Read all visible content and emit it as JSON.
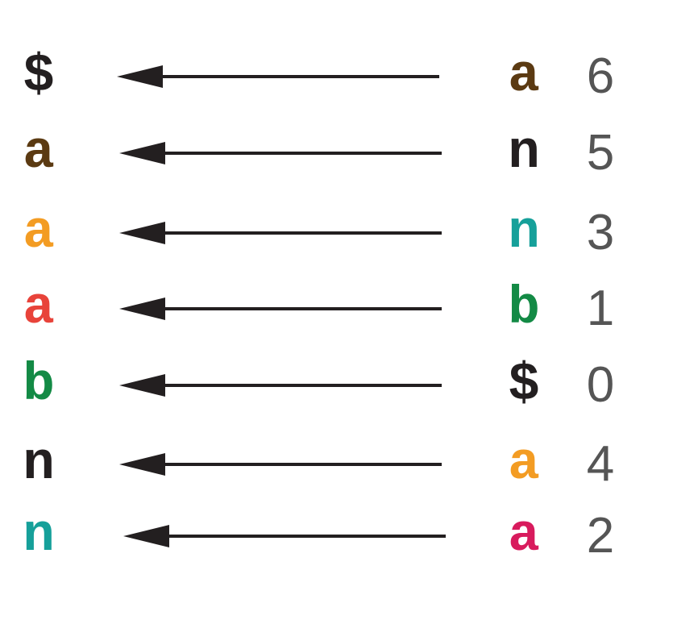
{
  "rows": [
    {
      "left": {
        "char": "$",
        "color": "#231f20"
      },
      "right": {
        "char": "a",
        "color": "#5b3a12"
      },
      "index": "6"
    },
    {
      "left": {
        "char": "a",
        "color": "#5b3a12"
      },
      "right": {
        "char": "n",
        "color": "#231f20"
      },
      "index": "5"
    },
    {
      "left": {
        "char": "a",
        "color": "#f39c23"
      },
      "right": {
        "char": "n",
        "color": "#16a09a"
      },
      "index": "3"
    },
    {
      "left": {
        "char": "a",
        "color": "#e8433a"
      },
      "right": {
        "char": "b",
        "color": "#138a45"
      },
      "index": "1"
    },
    {
      "left": {
        "char": "b",
        "color": "#138a45"
      },
      "right": {
        "char": "$",
        "color": "#231f20"
      },
      "index": "0"
    },
    {
      "left": {
        "char": "n",
        "color": "#231f20"
      },
      "right": {
        "char": "a",
        "color": "#f39c23"
      },
      "index": "4"
    },
    {
      "left": {
        "char": "n",
        "color": "#16a09a"
      },
      "right": {
        "char": "a",
        "color": "#d81b5d"
      },
      "index": "2"
    }
  ],
  "colors": {
    "arrow": "#231f20",
    "index": "#555555",
    "background": "#ffffff"
  }
}
